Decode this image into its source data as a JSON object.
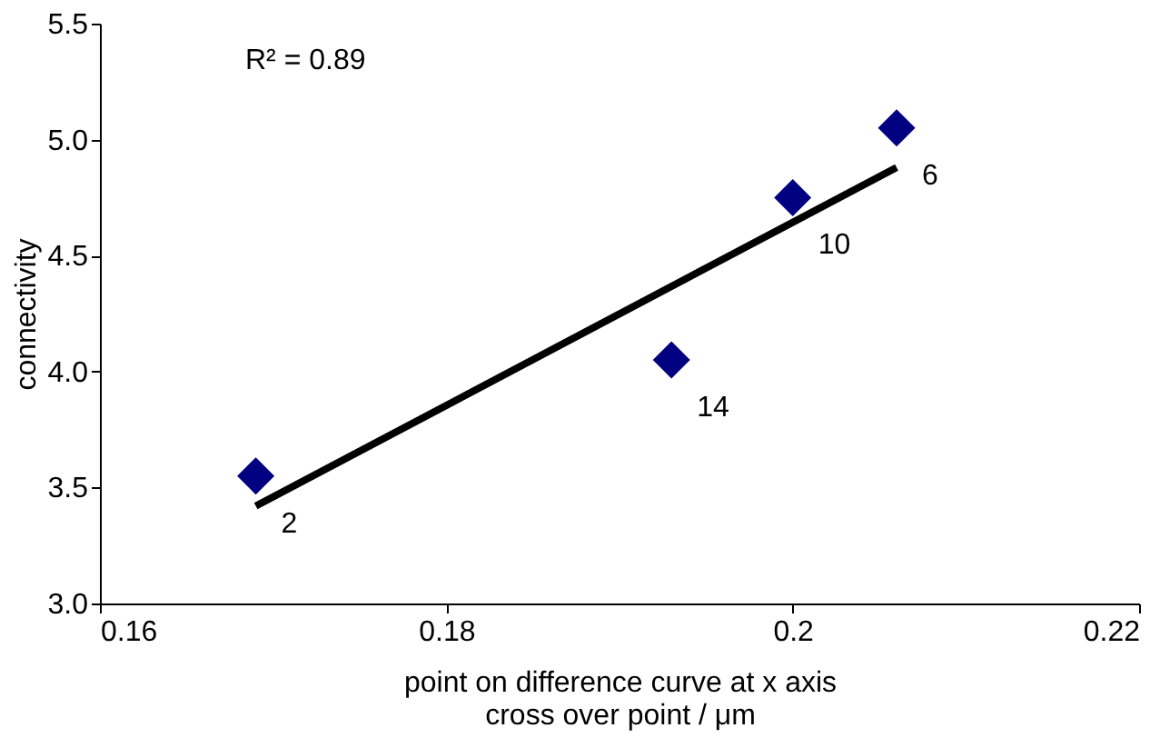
{
  "chart_data": {
    "type": "scatter",
    "xlabel": "point on difference curve at x axis\ncross over point / μm",
    "ylabel": "connectivity",
    "xlim": [
      0.16,
      0.22
    ],
    "xticks": [
      0.16,
      0.18,
      {
        "value": 0.2,
        "label": "0.2"
      },
      0.22
    ],
    "ylim": [
      3.0,
      5.5
    ],
    "yticks": [
      {
        "value": 3.0,
        "label": "3.0"
      },
      3.5,
      {
        "value": 4.0,
        "label": "4.0"
      },
      4.5,
      {
        "value": 5.0,
        "label": "5.0"
      },
      5.5
    ],
    "grid": false,
    "series": [
      {
        "color": "#000080",
        "marker": "diamond",
        "x": [
          0.169,
          0.193,
          0.2,
          0.206
        ],
        "values": [
          3.55,
          4.05,
          4.75,
          5.05
        ]
      },
      {
        "type": "line",
        "color": "#000000",
        "marker": "none",
        "line_style": "solid",
        "x": [
          0.169,
          0.206
        ],
        "values": [
          3.42,
          4.88
        ]
      }
    ],
    "annotations": [
      "R² = 0.89",
      {
        "text": "2",
        "x": 0.169,
        "y": 3.55
      },
      {
        "text": "14",
        "x": 0.193,
        "y": 4.05
      },
      {
        "text": "10",
        "x": 0.2,
        "y": 4.75
      },
      {
        "text": "6",
        "x": 0.206,
        "y": 5.05
      }
    ]
  }
}
